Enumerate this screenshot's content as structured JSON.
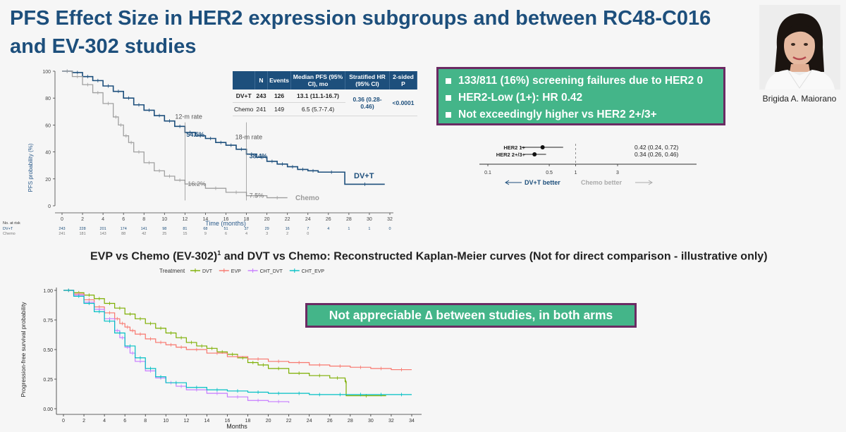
{
  "slide": {
    "title": "PFS Effect Size in HER2 expression subgroups and between RC48-C016 and EV-302 studies",
    "subtitle_main": "EVP vs Chemo (EV-302)",
    "subtitle_sup": "1",
    "subtitle_rest": " and DVT vs Chemo: Reconstructed Kaplan-Meier curves (Not for direct comparison - illustrative only)",
    "presenter_name": "Brigida A. Maiorano",
    "bullets": [
      "133/811 (16%) screening failures due to HER2 0",
      "HER2-Low (1+): HR 0.42",
      "Not exceedingly higher vs HER2 2+/3+"
    ],
    "callout": "Not appreciable ∆ between studies, in both arms"
  },
  "colors": {
    "title_blue": "#1d4f7c",
    "box_green": "#44b589",
    "box_border": "#6b2a63",
    "dvt_navy": "#1d4f7c",
    "chemo_grey": "#a0a0a0",
    "dvt_green": "#7cae00",
    "evp_red": "#f8766d",
    "cht_dvt_purple": "#c77cff",
    "cht_evp_cyan": "#00bfc4"
  },
  "pfs_table": {
    "headers": [
      "",
      "N",
      "Events",
      "Median PFS (95% CI), mo",
      "Stratified HR (95% CI)",
      "2-sided P"
    ],
    "rows": [
      {
        "arm": "DV+T",
        "n": "243",
        "events": "126",
        "median": "13.1 (11.1-16.7)"
      },
      {
        "arm": "Chemo",
        "n": "241",
        "events": "149",
        "median": "6.5 (5.7-7.4)"
      }
    ],
    "hr": "0.36 (0.28-0.46)",
    "p": "<0.0001"
  },
  "chart_data": [
    {
      "type": "line",
      "ylabel": "PFS probability (%)",
      "xlabel": "Time (months)",
      "xlim": [
        0,
        32
      ],
      "ylim": [
        0,
        100
      ],
      "x_ticks": [
        0,
        2,
        4,
        6,
        8,
        10,
        12,
        14,
        16,
        18,
        20,
        22,
        24,
        26,
        28,
        30,
        32
      ],
      "y_ticks": [
        0,
        20,
        40,
        60,
        80,
        100
      ],
      "series": [
        {
          "name": "DV+T",
          "x": [
            0,
            1,
            2,
            3,
            4,
            5,
            6,
            7,
            8,
            9,
            10,
            11,
            12,
            13,
            14,
            15,
            16,
            17,
            18,
            19,
            20,
            21,
            22,
            23,
            24,
            25,
            27.6,
            31.5
          ],
          "y": [
            100,
            99,
            96,
            93,
            89,
            85,
            80,
            75,
            71,
            67,
            63,
            59,
            54.5,
            52,
            50,
            47,
            45,
            42,
            38.4,
            36,
            33,
            31,
            29,
            27,
            26,
            25,
            16,
            16
          ]
        },
        {
          "name": "Chemo",
          "x": [
            0,
            1,
            2,
            3,
            4,
            5,
            5.5,
            6,
            6.5,
            7,
            8,
            9,
            10,
            11,
            12,
            14,
            16,
            18,
            20,
            22
          ],
          "y": [
            100,
            96,
            90,
            84,
            76,
            66,
            60,
            52,
            47,
            40,
            32,
            26,
            22,
            19,
            16.2,
            13,
            10,
            7.5,
            6,
            6
          ]
        }
      ],
      "annotations": [
        {
          "text": "12-m rate",
          "x": 12,
          "y": 63
        },
        {
          "text": "54.5%",
          "x": 12,
          "y": 54.5
        },
        {
          "text": "18-m rate",
          "x": 18,
          "y": 48
        },
        {
          "text": "38.4%",
          "x": 18,
          "y": 38.4
        },
        {
          "text": "16.2%",
          "x": 12,
          "y": 16.2
        },
        {
          "text": "7.5%",
          "x": 18,
          "y": 7.5
        }
      ],
      "risk_table": {
        "header": "No. at risk",
        "rows": [
          {
            "name": "DV+T",
            "values": [
              "243",
              "228",
              "201",
              "174",
              "141",
              "98",
              "81",
              "68",
              "51",
              "37",
              "29",
              "16",
              "7",
              "4",
              "1",
              "1",
              "0"
            ]
          },
          {
            "name": "Chemo",
            "values": [
              "241",
              "181",
              "143",
              "88",
              "42",
              "25",
              "15",
              "9",
              "6",
              "4",
              "3",
              "2",
              "0",
              "",
              "",
              "",
              ""
            ]
          }
        ]
      }
    },
    {
      "type": "scatter",
      "subtype": "forest",
      "x_scale": "log",
      "x_ticks": [
        0.1,
        0.5,
        1,
        3
      ],
      "x_tick_labels": [
        "0.1",
        "0.5",
        "1",
        "3"
      ],
      "rows": [
        {
          "label": "HER2 1+",
          "hr": 0.42,
          "lo": 0.24,
          "hi": 0.72,
          "text": "0.42 (0.24, 0.72)"
        },
        {
          "label": "HER2 2+/3+",
          "hr": 0.34,
          "lo": 0.26,
          "hi": 0.46,
          "text": "0.34 (0.26, 0.46)"
        }
      ],
      "left_label": "DV+T better",
      "right_label": "Chemo better"
    },
    {
      "type": "line",
      "ylabel": "Progression-free survival probability",
      "xlabel": "Months",
      "xlim": [
        0,
        34
      ],
      "ylim": [
        0,
        1
      ],
      "x_ticks": [
        0,
        2,
        4,
        6,
        8,
        10,
        12,
        14,
        16,
        18,
        20,
        22,
        24,
        26,
        28,
        30,
        32,
        34
      ],
      "y_ticks": [
        0,
        0.25,
        0.5,
        0.75,
        1
      ],
      "y_tick_labels": [
        "0.00",
        "0.25",
        "0.50",
        "0.75",
        "1.00"
      ],
      "legend_title": "Treatment",
      "series": [
        {
          "name": "DVT",
          "x": [
            0,
            1,
            2,
            3,
            4,
            5,
            6,
            7,
            8,
            9,
            10,
            11,
            12,
            13,
            14,
            15,
            16,
            17,
            18,
            19,
            20,
            22,
            24,
            26,
            27.5,
            27.6,
            31.5
          ],
          "y": [
            1,
            0.98,
            0.96,
            0.93,
            0.89,
            0.85,
            0.8,
            0.76,
            0.72,
            0.68,
            0.64,
            0.6,
            0.56,
            0.53,
            0.51,
            0.48,
            0.46,
            0.43,
            0.39,
            0.37,
            0.34,
            0.3,
            0.28,
            0.26,
            0.23,
            0.11,
            0.11
          ]
        },
        {
          "name": "EVP",
          "x": [
            0,
            1,
            2,
            3,
            4,
            5,
            5.5,
            6,
            6.5,
            7,
            8,
            9,
            10,
            11,
            12,
            14,
            16,
            18,
            20,
            22,
            24,
            26,
            28,
            30,
            32,
            34
          ],
          "y": [
            1,
            0.97,
            0.92,
            0.86,
            0.81,
            0.76,
            0.72,
            0.69,
            0.66,
            0.63,
            0.59,
            0.56,
            0.54,
            0.52,
            0.5,
            0.47,
            0.44,
            0.42,
            0.4,
            0.39,
            0.37,
            0.36,
            0.35,
            0.34,
            0.33,
            0.33
          ]
        },
        {
          "name": "CHT_DVT",
          "x": [
            0,
            1,
            2,
            3,
            4,
            5,
            5.5,
            6,
            6.5,
            7,
            8,
            9,
            10,
            11,
            12,
            14,
            16,
            18,
            20,
            22
          ],
          "y": [
            1,
            0.96,
            0.9,
            0.84,
            0.76,
            0.66,
            0.6,
            0.52,
            0.47,
            0.4,
            0.32,
            0.26,
            0.22,
            0.19,
            0.16,
            0.13,
            0.1,
            0.07,
            0.06,
            0.05
          ]
        },
        {
          "name": "CHT_EVP",
          "x": [
            0,
            1,
            2,
            3,
            4,
            5,
            6,
            7,
            8,
            9,
            10,
            12,
            14,
            16,
            18,
            20,
            22,
            24,
            26,
            28,
            30,
            32,
            34
          ],
          "y": [
            1,
            0.95,
            0.89,
            0.82,
            0.74,
            0.64,
            0.53,
            0.43,
            0.34,
            0.27,
            0.22,
            0.18,
            0.16,
            0.15,
            0.14,
            0.13,
            0.13,
            0.12,
            0.12,
            0.12,
            0.12,
            0.12,
            0.12
          ]
        }
      ]
    }
  ]
}
